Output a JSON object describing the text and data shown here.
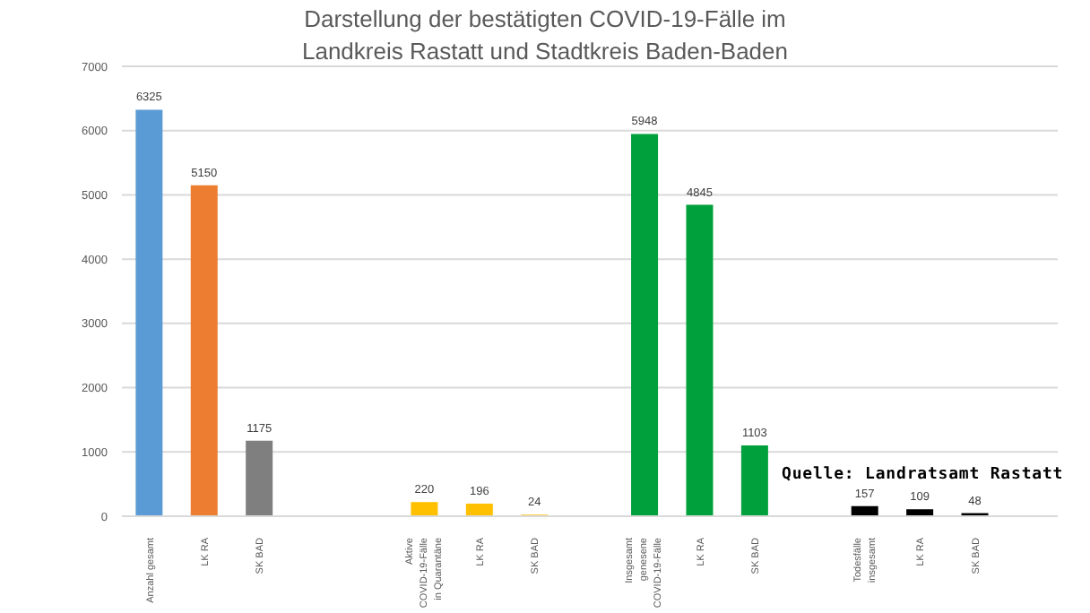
{
  "chart_data": {
    "type": "bar",
    "title": "Darstellung der bestätigten COVID-19-Fälle im\nLandkreis Rastatt und Stadtkreis Baden-Baden",
    "categories": [
      "Anzahl gesamt",
      "LK RA",
      "SK BAD",
      null,
      null,
      "Aktive COVID-19-Fälle in Quarantäne",
      "LK RA",
      "SK BAD",
      null,
      "Insgesamt genesene COVID-19-Fälle",
      "LK RA",
      "SK BAD",
      null,
      "Todesfälle insgesamt",
      "LK RA",
      "SK BAD",
      null
    ],
    "values": [
      6325,
      5150,
      1175,
      null,
      null,
      220,
      196,
      24,
      null,
      5948,
      4845,
      1103,
      null,
      157,
      109,
      48,
      null
    ],
    "colors": [
      "#5b9bd5",
      "#ed7d31",
      "#7f7f7f",
      null,
      null,
      "#ffc000",
      "#ffc000",
      "#ffc000",
      null,
      "#00a03c",
      "#00a03c",
      "#00a03c",
      null,
      "#000000",
      "#000000",
      "#000000",
      null
    ],
    "ylim": [
      0,
      7000
    ],
    "yticks": [
      0,
      1000,
      2000,
      3000,
      4000,
      5000,
      6000,
      7000
    ],
    "grid": "y",
    "data_labels": true,
    "annotations": [
      "Quelle: Landratsamt Rastatt"
    ]
  }
}
